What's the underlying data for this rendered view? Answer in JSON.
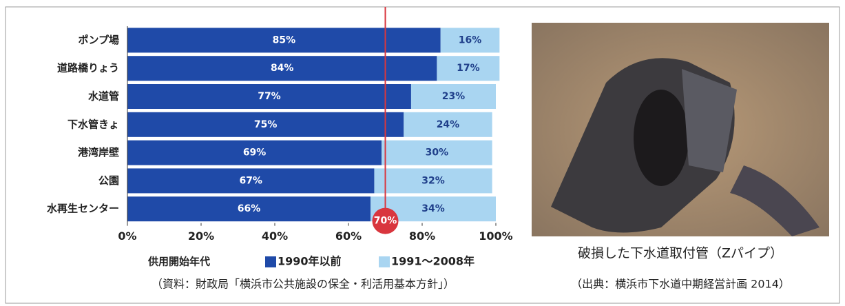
{
  "chart_data": {
    "type": "stacked-bar-horizontal",
    "categories": [
      "ポンプ場",
      "道路橋りょう",
      "水道管",
      "下水管きょ",
      "港湾岸壁",
      "公園",
      "水再生センター"
    ],
    "series": [
      {
        "name": "1990年以前",
        "color": "#1f4aa8",
        "values": [
          85,
          84,
          77,
          75,
          69,
          67,
          66
        ],
        "value_labels": [
          "85%",
          "84%",
          "77%",
          "75%",
          "69%",
          "67%",
          "66%"
        ]
      },
      {
        "name": "1991～2008年",
        "color": "#a9d5f1",
        "values": [
          16,
          17,
          23,
          24,
          30,
          32,
          34
        ],
        "value_labels": [
          "16%",
          "17%",
          "23%",
          "24%",
          "30%",
          "32%",
          "34%"
        ]
      }
    ],
    "xlim": [
      0,
      100
    ],
    "xticks": [
      {
        "value": 0,
        "label": "0%"
      },
      {
        "value": 20,
        "label": "20%"
      },
      {
        "value": 40,
        "label": "40%"
      },
      {
        "value": 60,
        "label": "60%"
      },
      {
        "value": 80,
        "label": "80%"
      },
      {
        "value": 100,
        "label": "100%"
      }
    ],
    "legend_title": "供用開始年代",
    "reference_line": {
      "value": 70,
      "label": "70%",
      "color": "#d9363e"
    },
    "source": "（資料：財政局「横浜市公共施設の保全・利活用基本方針」）"
  },
  "photo": {
    "caption": "破損した下水道取付管（Zパイプ）",
    "source": "（出典：横浜市下水道中期経営計画 2014）"
  }
}
